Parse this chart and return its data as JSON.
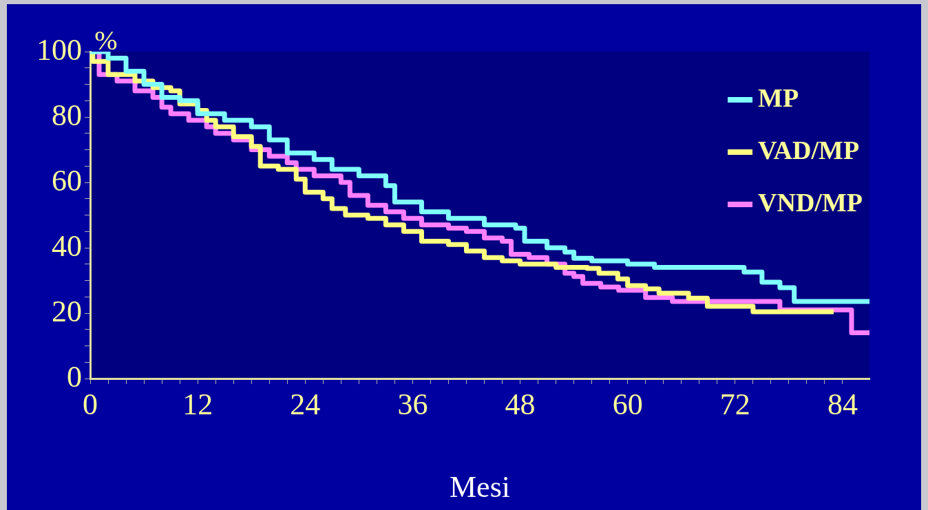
{
  "chart_data": {
    "type": "step",
    "xlabel": "Mesi",
    "ylabel": "%",
    "xlim": [
      0,
      87
    ],
    "ylim": [
      0,
      100
    ],
    "xticks": [
      0,
      {
        "value": 2,
        "label": null
      },
      {
        "value": 4,
        "label": null
      },
      {
        "value": 6,
        "label": null
      },
      {
        "value": 8,
        "label": null
      },
      {
        "value": 10,
        "label": null
      },
      12,
      {
        "value": 14,
        "label": null
      },
      {
        "value": 16,
        "label": null
      },
      {
        "value": 18,
        "label": null
      },
      {
        "value": 20,
        "label": null
      },
      {
        "value": 22,
        "label": null
      },
      24,
      {
        "value": 26,
        "label": null
      },
      {
        "value": 28,
        "label": null
      },
      {
        "value": 30,
        "label": null
      },
      {
        "value": 32,
        "label": null
      },
      {
        "value": 34,
        "label": null
      },
      36,
      {
        "value": 38,
        "label": null
      },
      {
        "value": 40,
        "label": null
      },
      {
        "value": 42,
        "label": null
      },
      {
        "value": 44,
        "label": null
      },
      {
        "value": 46,
        "label": null
      },
      48,
      {
        "value": 50,
        "label": null
      },
      {
        "value": 52,
        "label": null
      },
      {
        "value": 54,
        "label": null
      },
      {
        "value": 56,
        "label": null
      },
      {
        "value": 58,
        "label": null
      },
      60,
      {
        "value": 62,
        "label": null
      },
      {
        "value": 64,
        "label": null
      },
      {
        "value": 66,
        "label": null
      },
      {
        "value": 68,
        "label": null
      },
      {
        "value": 70,
        "label": null
      },
      72,
      {
        "value": 74,
        "label": null
      },
      {
        "value": 76,
        "label": null
      },
      {
        "value": 78,
        "label": null
      },
      {
        "value": 80,
        "label": null
      },
      {
        "value": 82,
        "label": null
      },
      84
    ],
    "yticks": [
      0,
      {
        "value": 5,
        "label": null
      },
      {
        "value": 10,
        "label": null
      },
      {
        "value": 15,
        "label": null
      },
      20,
      {
        "value": 25,
        "label": null
      },
      {
        "value": 30,
        "label": null
      },
      {
        "value": 35,
        "label": null
      },
      40,
      {
        "value": 45,
        "label": null
      },
      {
        "value": 50,
        "label": null
      },
      {
        "value": 55,
        "label": null
      },
      60,
      {
        "value": 65,
        "label": null
      },
      {
        "value": 70,
        "label": null
      },
      {
        "value": 75,
        "label": null
      },
      80,
      {
        "value": 85,
        "label": null
      },
      {
        "value": 90,
        "label": null
      },
      {
        "value": 95,
        "label": null
      },
      100
    ],
    "grid": false,
    "legend": "top right",
    "marker": "none",
    "line_style": "solid",
    "series": [
      {
        "name": "MP",
        "color": "#80ffff",
        "x": [
          0,
          2,
          4,
          6,
          8,
          10,
          12,
          15,
          18,
          20,
          22,
          25,
          27,
          30,
          33,
          34,
          37,
          40,
          44,
          47.5,
          48.5,
          51,
          53,
          54,
          56,
          60,
          63,
          73,
          75,
          77,
          78.6,
          87
        ],
        "values": [
          100,
          98,
          94,
          90,
          86,
          85,
          81,
          79,
          77,
          73,
          69,
          67,
          64,
          62,
          59,
          54,
          51,
          49,
          47,
          46,
          42,
          40,
          38.7,
          36.8,
          36,
          35,
          34,
          32.6,
          29.5,
          27.8,
          23.6,
          23.6
        ]
      },
      {
        "name": "VAD/MP",
        "color": "#ffff80",
        "x": [
          0,
          0.3,
          2,
          5,
          7,
          9,
          10,
          12,
          13,
          14,
          16,
          18,
          19,
          21,
          23,
          24,
          26,
          27,
          28.5,
          31,
          33,
          35,
          37,
          40,
          42,
          44,
          46,
          48,
          52,
          55.5,
          56.8,
          58.9,
          60,
          62,
          63.5,
          66.8,
          68.9,
          74,
          83
        ],
        "values": [
          100,
          97,
          93,
          91,
          89,
          88,
          84,
          82,
          79,
          77,
          74,
          71,
          65,
          64,
          61,
          57,
          55,
          52,
          50,
          49,
          47,
          45,
          42,
          41,
          39,
          37,
          36,
          35,
          34,
          33.7,
          32.2,
          30.5,
          28.4,
          27.4,
          26.1,
          24.6,
          22.1,
          20.4,
          20.4
        ]
      },
      {
        "name": "VND/MP",
        "color": "#ff80ff",
        "x": [
          0,
          1,
          3,
          5,
          7,
          8,
          9,
          11,
          13,
          14,
          16,
          18,
          20,
          22,
          23,
          25,
          28,
          29,
          31,
          33,
          35,
          37,
          40,
          42,
          44,
          46,
          47,
          49,
          51,
          53,
          54,
          55,
          57,
          59,
          62,
          65,
          77,
          85,
          87
        ],
        "values": [
          100,
          93,
          91,
          88,
          86,
          83,
          81,
          79,
          77,
          75,
          73,
          70,
          68,
          66,
          64,
          62,
          60,
          56,
          53,
          51,
          49,
          47,
          46,
          45,
          43,
          42,
          38,
          37,
          35,
          32.2,
          31.2,
          29.1,
          28,
          27,
          24.8,
          23.6,
          21,
          14,
          14
        ]
      }
    ]
  }
}
